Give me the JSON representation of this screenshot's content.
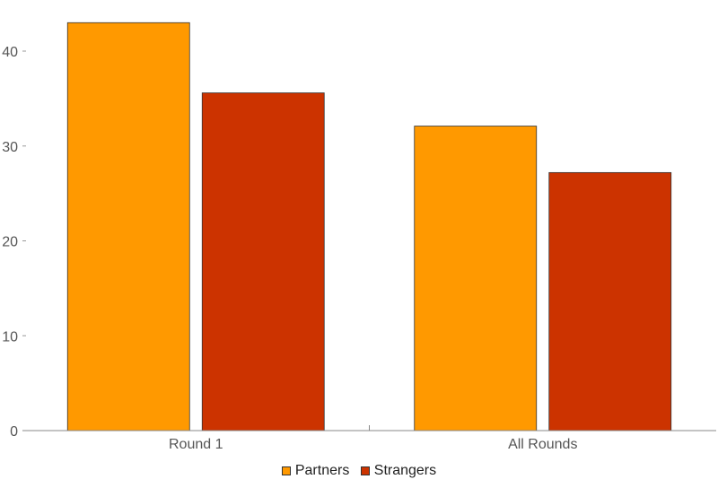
{
  "chart_data": {
    "type": "bar",
    "categories": [
      "Round 1",
      "All Rounds"
    ],
    "series": [
      {
        "name": "Partners",
        "color": "#FF9900",
        "values": [
          43,
          32.1
        ]
      },
      {
        "name": "Strangers",
        "color": "#CC3300",
        "values": [
          35.6,
          27.2
        ]
      }
    ],
    "yticks": [
      0,
      10,
      20,
      30,
      40
    ],
    "ylim": [
      0,
      43.5
    ],
    "grid": false,
    "legend_position": "bottom-center"
  }
}
